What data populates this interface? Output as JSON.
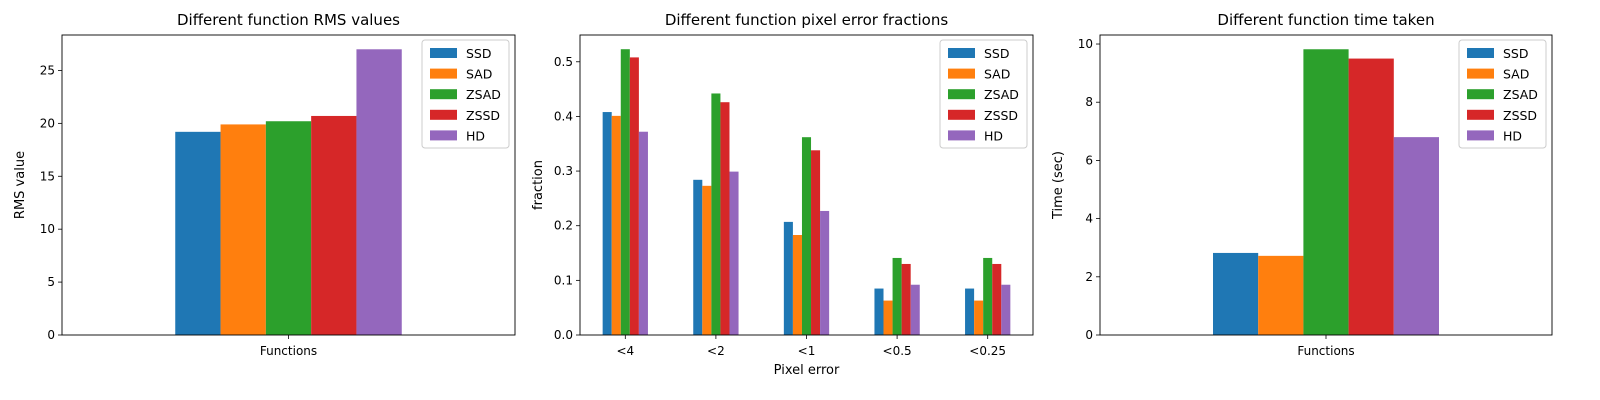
{
  "chart_data": [
    {
      "type": "bar",
      "title": "Different function RMS values",
      "xlabel": "",
      "ylabel": "RMS value",
      "categories": [
        "Functions"
      ],
      "series": [
        {
          "name": "SSD",
          "values": [
            19.2
          ]
        },
        {
          "name": "SAD",
          "values": [
            19.9
          ]
        },
        {
          "name": "ZSAD",
          "values": [
            20.2
          ]
        },
        {
          "name": "ZSSD",
          "values": [
            20.7
          ]
        },
        {
          "name": "HD",
          "values": [
            27.0
          ]
        }
      ],
      "ylim": [
        0,
        28.35
      ],
      "yticks": [
        0,
        5,
        10,
        15,
        20,
        25
      ],
      "legend": "top-right",
      "grid": false
    },
    {
      "type": "bar",
      "title": "Different function pixel error fractions",
      "xlabel": "Pixel error",
      "ylabel": "fraction",
      "categories": [
        "<4",
        "<2",
        "<1",
        "<0.5",
        "<0.25"
      ],
      "series": [
        {
          "name": "SSD",
          "values": [
            0.408,
            0.284,
            0.207,
            0.085,
            0.085
          ]
        },
        {
          "name": "SAD",
          "values": [
            0.401,
            0.273,
            0.183,
            0.063,
            0.063
          ]
        },
        {
          "name": "ZSAD",
          "values": [
            0.523,
            0.442,
            0.362,
            0.141,
            0.141
          ]
        },
        {
          "name": "ZSSD",
          "values": [
            0.508,
            0.426,
            0.338,
            0.13,
            0.13
          ]
        },
        {
          "name": "HD",
          "values": [
            0.372,
            0.299,
            0.227,
            0.092,
            0.092
          ]
        }
      ],
      "ylim": [
        0,
        0.549
      ],
      "yticks": [
        0.0,
        0.1,
        0.2,
        0.3,
        0.4,
        0.5
      ],
      "legend": "top-right",
      "grid": false
    },
    {
      "type": "bar",
      "title": "Different function time taken",
      "xlabel": "",
      "ylabel": "Time (sec)",
      "categories": [
        "Functions"
      ],
      "series": [
        {
          "name": "SSD",
          "values": [
            2.82
          ]
        },
        {
          "name": "SAD",
          "values": [
            2.72
          ]
        },
        {
          "name": "ZSAD",
          "values": [
            9.82
          ]
        },
        {
          "name": "ZSSD",
          "values": [
            9.5
          ]
        },
        {
          "name": "HD",
          "values": [
            6.8
          ]
        }
      ],
      "ylim": [
        0,
        10.31
      ],
      "yticks": [
        0,
        2,
        4,
        6,
        8,
        10
      ],
      "legend": "top-right",
      "grid": false
    }
  ],
  "colors": [
    "#1f77b4",
    "#ff7f0e",
    "#2ca02c",
    "#d62728",
    "#9467bd"
  ]
}
